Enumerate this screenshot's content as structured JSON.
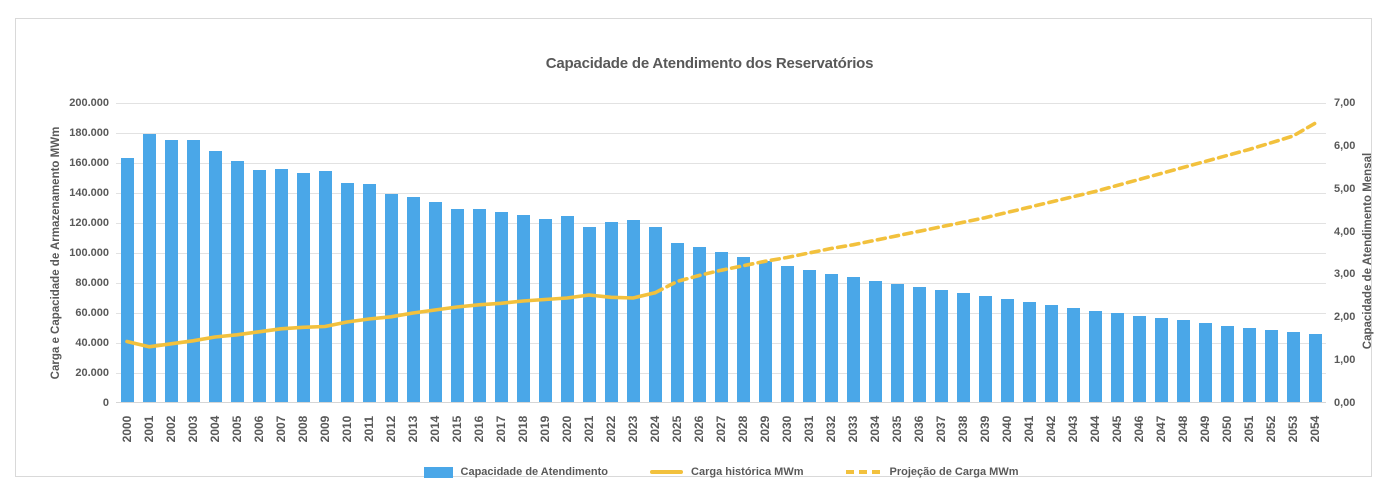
{
  "page": {
    "title": "Capacidade de Atendimento dos Reservatórios"
  },
  "axes": {
    "left": {
      "title": "Carga e Capacidade de Armazenamento MWm",
      "ticks": [
        "200.000",
        "180.000",
        "160.000",
        "140.000",
        "120.000",
        "100.000",
        "80.000",
        "60.000",
        "40.000",
        "20.000",
        "0"
      ]
    },
    "right": {
      "title": "Capacidade de Atendimento Mensal",
      "ticks": [
        "7,00",
        "6,00",
        "5,00",
        "4,00",
        "3,00",
        "2,00",
        "1,00",
        "0,00"
      ]
    }
  },
  "legend": [
    {
      "label": "Capacidade de Atendimento",
      "swatch": "bar",
      "color": "#4aa7e8"
    },
    {
      "label": "Carga histórica MWm",
      "swatch": "line",
      "color": "#f2c13d"
    },
    {
      "label": "Projeção de Carga MWm",
      "swatch": "dash",
      "color": "#f2c13d"
    }
  ],
  "colors": {
    "bar": "#4aa7e8",
    "line": "#f2c13d",
    "grid": "#e2e2e2",
    "text": "#595959"
  },
  "chart_data": {
    "type": "bar",
    "title": "Capacidade de Atendimento dos Reservatórios",
    "xlabel": "",
    "ylabel_left": "Carga e Capacidade de Armazenamento MWm",
    "ylabel_right": "Capacidade de Atendimento Mensal",
    "left_ylim": [
      0,
      200000
    ],
    "right_ylim": [
      0,
      7
    ],
    "grid": true,
    "legend_position": "bottom",
    "categories": [
      2000,
      2001,
      2002,
      2003,
      2004,
      2005,
      2006,
      2007,
      2008,
      2009,
      2010,
      2011,
      2012,
      2013,
      2014,
      2015,
      2016,
      2017,
      2018,
      2019,
      2020,
      2021,
      2022,
      2023,
      2024,
      2025,
      2026,
      2027,
      2028,
      2029,
      2030,
      2031,
      2032,
      2033,
      2034,
      2035,
      2036,
      2037,
      2038,
      2039,
      2040,
      2041,
      2042,
      2043,
      2044,
      2045,
      2046,
      2047,
      2048,
      2049,
      2050,
      2051,
      2052,
      2053,
      2054
    ],
    "series": [
      {
        "name": "Capacidade de Atendimento",
        "type": "bar",
        "axis": "left",
        "color": "#4aa7e8",
        "values": [
          163000,
          179000,
          175000,
          175000,
          167500,
          161000,
          155000,
          155500,
          152500,
          154000,
          146000,
          145500,
          139000,
          136500,
          133500,
          129000,
          129000,
          127000,
          125000,
          122000,
          124000,
          117000,
          120000,
          121500,
          117000,
          106000,
          103500,
          100000,
          97000,
          94000,
          91000,
          88000,
          85500,
          83500,
          81000,
          78500,
          76500,
          74500,
          73000,
          71000,
          68500,
          66500,
          65000,
          63000,
          61000,
          59500,
          57500,
          56000,
          54500,
          52500,
          51000,
          49500,
          48000,
          46500,
          45500
        ]
      },
      {
        "name": "Carga histórica MWm",
        "type": "line-solid",
        "axis": "left",
        "color": "#f2c13d",
        "x": [
          2000,
          2001,
          2002,
          2003,
          2004,
          2005,
          2006,
          2007,
          2008,
          2009,
          2010,
          2011,
          2012,
          2013,
          2014,
          2015,
          2016,
          2017,
          2018,
          2019,
          2020,
          2021,
          2022,
          2023,
          2024
        ],
        "values": [
          41000,
          37500,
          39500,
          41500,
          44000,
          45500,
          47500,
          49500,
          50500,
          51000,
          54000,
          56000,
          57500,
          60000,
          62000,
          64000,
          65500,
          66500,
          68000,
          69000,
          70000,
          72000,
          70500,
          70000,
          73500
        ]
      },
      {
        "name": "Projeção de Carga MWm",
        "type": "line-dashed",
        "axis": "left",
        "color": "#f2c13d",
        "x": [
          2024,
          2025,
          2026,
          2027,
          2028,
          2029,
          2030,
          2031,
          2032,
          2033,
          2034,
          2035,
          2036,
          2037,
          2038,
          2039,
          2040,
          2041,
          2042,
          2043,
          2044,
          2045,
          2046,
          2047,
          2048,
          2049,
          2050,
          2051,
          2052,
          2053,
          2054
        ],
        "values": [
          73500,
          81000,
          85000,
          88500,
          91500,
          94500,
          97000,
          100000,
          103000,
          105500,
          108500,
          111500,
          114500,
          117500,
          120500,
          123500,
          127000,
          130500,
          134000,
          137500,
          141000,
          145000,
          149000,
          153000,
          157000,
          161000,
          165000,
          169000,
          173500,
          178000,
          186500
        ]
      }
    ]
  }
}
